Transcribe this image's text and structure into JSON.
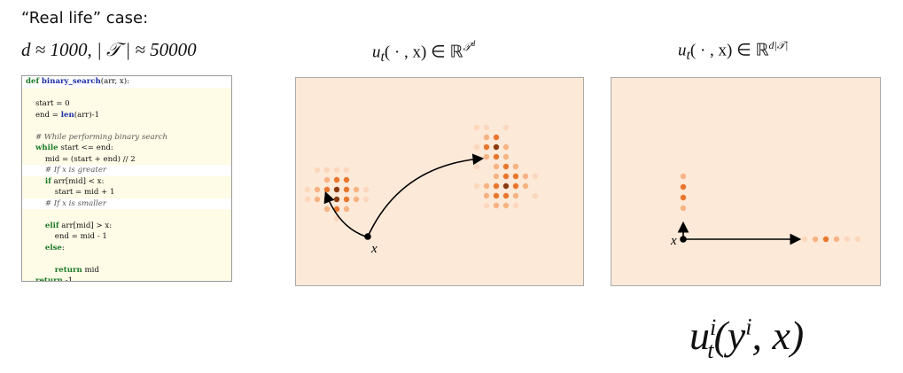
{
  "header": "“Real life” case:",
  "subheader": "d ≈ 1000, | 𝒯 | ≈ 50000",
  "formula_left": {
    "base": "u",
    "sub": "t",
    "args": "( · , x) ∈ ℝ",
    "sup": "𝒯",
    "sup2": "d"
  },
  "formula_right": {
    "base": "u",
    "sub": "t",
    "args": "( · , x) ∈ ℝ",
    "sup": "d|𝒯|"
  },
  "big_formula": {
    "base": "u",
    "sup": "i",
    "sub": "t",
    "args": "(y",
    "sup2": "i",
    "tail": ", x)"
  },
  "code": {
    "def_kw": "def",
    "fn_name": "binary_search",
    "def_rest": "(arr, x):",
    "line_start": "start = 0",
    "line_end_pre": "end = ",
    "len_fn": "len",
    "line_end_post": "(arr)-1",
    "comment_while": "# While performing binary search",
    "while_kw": "while",
    "while_rest": " start <= end:",
    "mid_line": "mid = (start + end) // 2",
    "comment_greater": "# If x is greater",
    "if_kw": "if",
    "if_rest": " arr[mid] < x:",
    "start_update": "start = mid + 1",
    "comment_smaller": "# If x is smaller",
    "elif_kw": "elif",
    "elif_rest": " arr[mid] > x:",
    "end_update": "end = mid - 1",
    "else_kw": "else",
    "else_rest": ":",
    "return_kw": "return",
    "return_mid": " mid",
    "return_neg": " -1"
  },
  "panels": {
    "background": "#fde9d8",
    "point_label": "x",
    "left_dots": [
      [
        0,
        3,
        0
      ],
      [
        1,
        3,
        0
      ],
      [
        2,
        3,
        0
      ],
      [
        3,
        3,
        0
      ],
      [
        1,
        2,
        1
      ],
      [
        2,
        2,
        2
      ],
      [
        3,
        2,
        2
      ],
      [
        0,
        1,
        1
      ],
      [
        1,
        1,
        2
      ],
      [
        2,
        1,
        3
      ],
      [
        3,
        1,
        2
      ],
      [
        4,
        1,
        1
      ],
      [
        0,
        0,
        1
      ],
      [
        1,
        0,
        3
      ],
      [
        2,
        0,
        3
      ],
      [
        3,
        0,
        2
      ],
      [
        4,
        0,
        1
      ],
      [
        1,
        -1,
        1
      ],
      [
        2,
        -1,
        2
      ],
      [
        3,
        -1,
        1
      ],
      [
        2,
        -2,
        0
      ],
      [
        -1,
        1,
        0
      ],
      [
        -1,
        0,
        0
      ],
      [
        5,
        0,
        0
      ],
      [
        5,
        1,
        0
      ]
    ],
    "right_cluster_dots": [
      [
        0,
        0,
        1
      ],
      [
        1,
        0,
        2
      ],
      [
        0,
        -1,
        2
      ],
      [
        1,
        -1,
        3
      ],
      [
        2,
        -1,
        1
      ],
      [
        0,
        -2,
        1
      ],
      [
        1,
        -2,
        2
      ],
      [
        2,
        -2,
        1
      ],
      [
        1,
        -3,
        1
      ],
      [
        2,
        -3,
        2
      ],
      [
        3,
        -3,
        1
      ],
      [
        1,
        -4,
        1
      ],
      [
        2,
        -4,
        2
      ],
      [
        3,
        -4,
        2
      ],
      [
        4,
        -4,
        1
      ],
      [
        0,
        -5,
        1
      ],
      [
        1,
        -5,
        2
      ],
      [
        2,
        -5,
        3
      ],
      [
        3,
        -5,
        2
      ],
      [
        4,
        -5,
        1
      ],
      [
        0,
        -6,
        1
      ],
      [
        1,
        -6,
        2
      ],
      [
        2,
        -6,
        2
      ],
      [
        3,
        -6,
        1
      ],
      [
        0,
        -7,
        0
      ],
      [
        1,
        -7,
        1
      ],
      [
        2,
        -7,
        1
      ],
      [
        3,
        -7,
        0
      ],
      [
        -1,
        1,
        0
      ],
      [
        0,
        1,
        0
      ],
      [
        -1,
        -1,
        0
      ],
      [
        -1,
        -3,
        0
      ],
      [
        -1,
        -5,
        0
      ],
      [
        5,
        -4,
        0
      ],
      [
        5,
        -6,
        0
      ],
      [
        2,
        1,
        0
      ]
    ],
    "right_vertical_dots": [
      1,
      2,
      2,
      1
    ],
    "right_horizontal_dots": [
      0,
      1,
      2,
      1,
      0,
      0
    ]
  }
}
